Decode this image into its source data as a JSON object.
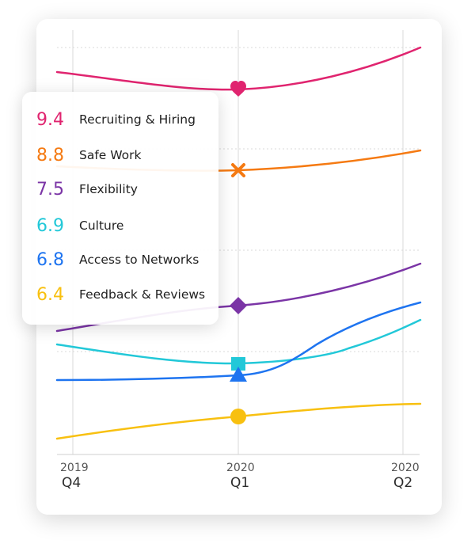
{
  "chart_data": {
    "type": "line",
    "categories": [
      "2019 Q4",
      "2020 Q1",
      "2020 Q2"
    ],
    "x_ticks": [
      {
        "year": "2019",
        "quarter": "Q4"
      },
      {
        "year": "2020",
        "quarter": "Q1"
      },
      {
        "year": "2020",
        "quarter": "Q2"
      }
    ],
    "grid": true,
    "legend_position": "left",
    "series": [
      {
        "name": "Recruiting & Hiring",
        "label": "9.4",
        "color": "#E0246F",
        "marker": "heart"
      },
      {
        "name": "Safe Work",
        "label": "8.8",
        "color": "#F57A12",
        "marker": "cross"
      },
      {
        "name": "Flexibility",
        "label": "7.5",
        "color": "#7B35A6",
        "marker": "diamond"
      },
      {
        "name": "Culture",
        "label": "6.9",
        "color": "#22C8D8",
        "marker": "square"
      },
      {
        "name": "Access to Networks",
        "label": "6.8",
        "color": "#1E74F0",
        "marker": "triangle"
      },
      {
        "name": "Feedback & Reviews",
        "label": "6.4",
        "color": "#F8C010",
        "marker": "circle"
      }
    ]
  }
}
